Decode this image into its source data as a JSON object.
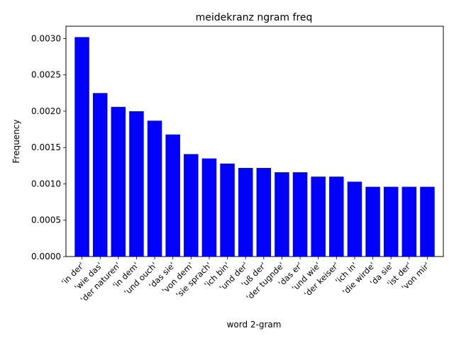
{
  "chart_data": {
    "type": "bar",
    "title": "meidekranz ngram freq",
    "xlabel": "word 2-gram",
    "ylabel": "Frequency",
    "categories": [
      "'in der'",
      "'wie das'",
      "'der naturen'",
      "'in dem'",
      "'und ouch'",
      "'das sie'",
      "'von dem'",
      "'sie sprach'",
      "'ich bin'",
      "'und der'",
      "'uß der'",
      "'der tugnde'",
      "'das er'",
      "'und wie'",
      "'der keiser'",
      "'ich in'",
      "'die wirde'",
      "'da sie'",
      "'ist der'",
      "'von mir'"
    ],
    "values": [
      0.00302,
      0.00225,
      0.00206,
      0.002,
      0.00187,
      0.00168,
      0.00141,
      0.00135,
      0.00128,
      0.00122,
      0.00122,
      0.00116,
      0.00116,
      0.0011,
      0.0011,
      0.00103,
      0.00096,
      0.00096,
      0.00096,
      0.00096
    ],
    "ylim": [
      0,
      0.00317
    ],
    "yticks": [
      "0.0000",
      "0.0005",
      "0.0010",
      "0.0015",
      "0.0020",
      "0.0025",
      "0.0030"
    ],
    "ytick_values": [
      0,
      0.0005,
      0.001,
      0.0015,
      0.002,
      0.0025,
      0.003
    ],
    "bar_color": "#0000ff",
    "grid": false,
    "legend": false
  }
}
